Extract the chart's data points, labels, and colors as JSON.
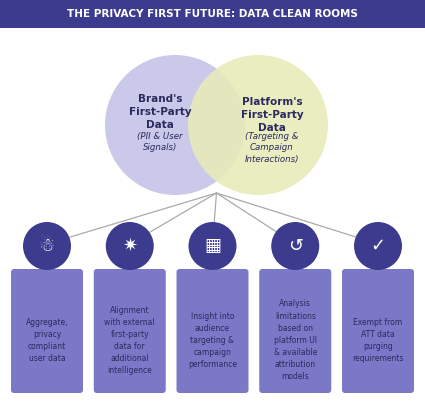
{
  "title": "THE PRIVACY FIRST FUTURE: DATA CLEAN ROOMS",
  "title_bg_color": "#3d3b8e",
  "title_text_color": "#ffffff",
  "bg_color": "#ffffff",
  "circle_left_color": "#c5c3e8",
  "circle_right_color": "#e8ebb8",
  "circle_left_label": "Brand's\nFirst-Party\nData",
  "circle_left_sublabel": "(PII & User\nSignals)",
  "circle_right_label": "Platform's\nFirst-Party\nData",
  "circle_right_sublabel": "(Targeting &\nCampaign\nInteractions)",
  "card_color": "#7b78c8",
  "icon_circle_color": "#3d3b8e",
  "line_color": "#aaaaaa",
  "text_dark": "#2a2a5e",
  "cards": [
    {
      "label": "Aggregate,\nprivacy\ncompliant\nuser data"
    },
    {
      "label": "Alignment\nwith external\nfirst-party\ndata for\nadditional\nintelligence"
    },
    {
      "label": "Insight into\naudience\ntargeting &\ncampaign\nperformance"
    },
    {
      "label": "Analysis\nlimitations\nbased on\nplatform UI\n& available\nattribution\nmodels"
    },
    {
      "label": "Exempt from\nATT data\npurging\nrequirements"
    }
  ]
}
